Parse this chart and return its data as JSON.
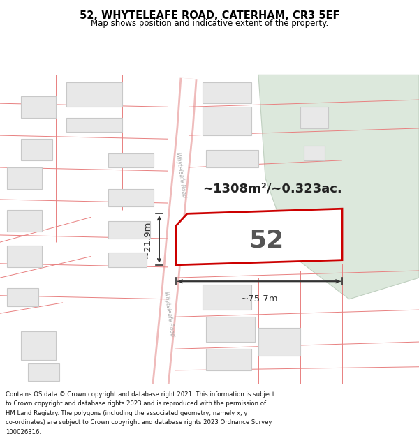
{
  "title": "52, WHYTELEAFE ROAD, CATERHAM, CR3 5EF",
  "subtitle": "Map shows position and indicative extent of the property.",
  "area_label": "~1308m²/~0.323ac.",
  "plot_number": "52",
  "dim_width": "~75.7m",
  "dim_height": "~21.9m",
  "footer_lines": [
    "Contains OS data © Crown copyright and database right 2021. This information is subject",
    "to Crown copyright and database rights 2023 and is reproduced with the permission of",
    "HM Land Registry. The polygons (including the associated geometry, namely x, y",
    "co-ordinates) are subject to Crown copyright and database rights 2023 Ordnance Survey",
    "100026316."
  ],
  "map_bg": "#ffffff",
  "road_bg": "#f5f5f5",
  "plot_line": "#e88080",
  "plot_highlight": "#cc0000",
  "building_fill": "#e8e8e8",
  "building_edge": "#c8c8c8",
  "green_fill": "#dce8dc",
  "green_edge": "#c0d0c0",
  "road_label_color": "#aaaaaa",
  "dim_color": "#333333",
  "text_color": "#111111"
}
